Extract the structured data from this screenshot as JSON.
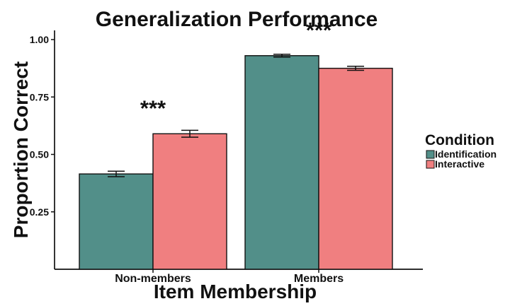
{
  "chart_data": {
    "type": "bar",
    "title": "Generalization Performance",
    "xlabel": "Item Membership",
    "ylabel": "Proportion Correct",
    "categories": [
      "Non-members",
      "Members"
    ],
    "series": [
      {
        "name": "Identification",
        "values": [
          0.415,
          0.93
        ],
        "errors": [
          0.012,
          0.006
        ],
        "color": "#528f89"
      },
      {
        "name": "Interactive",
        "values": [
          0.59,
          0.875
        ],
        "errors": [
          0.015,
          0.009
        ],
        "color": "#f07f80"
      }
    ],
    "ylim": [
      0,
      1.04
    ],
    "y_ticks": [
      0.25,
      0.5,
      0.75,
      1.0
    ],
    "y_tick_labels": [
      "0.25",
      "0.50",
      "0.75",
      "1.00"
    ],
    "annotations": [
      "***",
      "***"
    ],
    "legend": {
      "title": "Condition",
      "placement": "right"
    },
    "grid": false
  }
}
